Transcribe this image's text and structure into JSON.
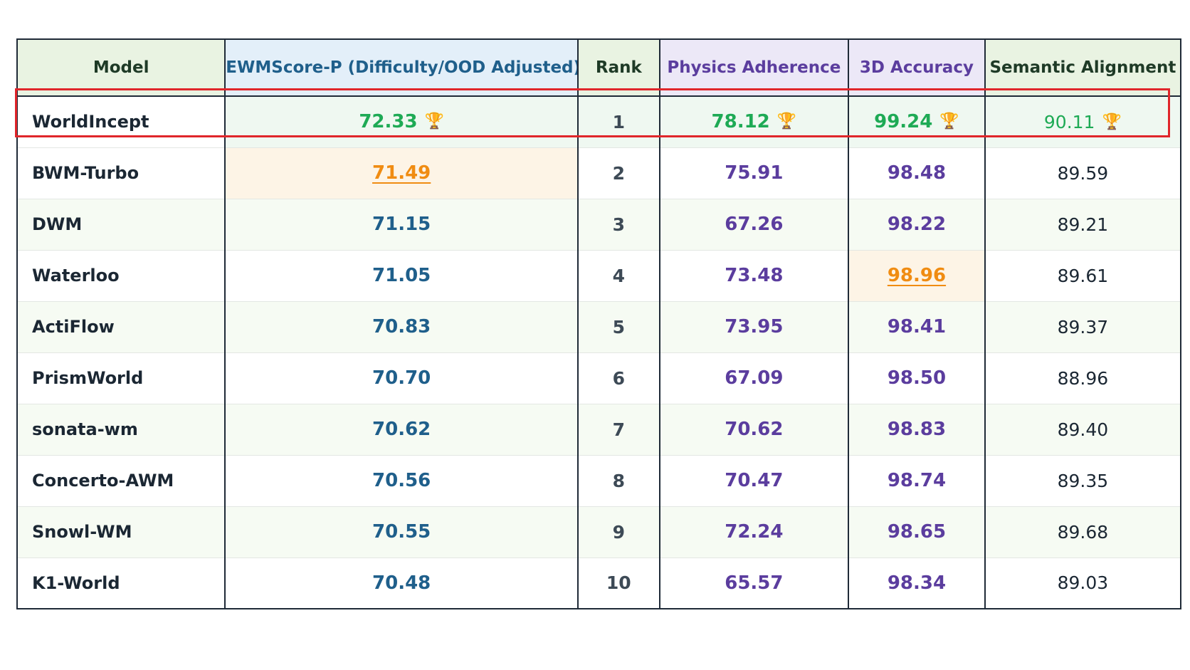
{
  "colors": {
    "best": "#1eaa55",
    "second_best": "#f08c12",
    "highlight_border": "#e0262b",
    "score": "#1f5f8b",
    "subscore": "#5b3d9e"
  },
  "chart_data": {
    "type": "table",
    "columns": [
      "Model",
      "EWMScore-P (Difficulty/OOD Adjusted)",
      "Rank",
      "Physics Adherence",
      "3D Accuracy",
      "Semantic Alignment"
    ],
    "rows": [
      {
        "model": "WorldIncept",
        "score": "72.33",
        "rank": "1",
        "physics": "78.12",
        "accuracy": "99.24",
        "semantic": "90.11"
      },
      {
        "model": "BWM-Turbo",
        "score": "71.49",
        "rank": "2",
        "physics": "75.91",
        "accuracy": "98.48",
        "semantic": "89.59"
      },
      {
        "model": "DWM",
        "score": "71.15",
        "rank": "3",
        "physics": "67.26",
        "accuracy": "98.22",
        "semantic": "89.21"
      },
      {
        "model": "Waterloo",
        "score": "71.05",
        "rank": "4",
        "physics": "73.48",
        "accuracy": "98.96",
        "semantic": "89.61"
      },
      {
        "model": "ActiFlow",
        "score": "70.83",
        "rank": "5",
        "physics": "73.95",
        "accuracy": "98.41",
        "semantic": "89.37"
      },
      {
        "model": "PrismWorld",
        "score": "70.70",
        "rank": "6",
        "physics": "67.09",
        "accuracy": "98.50",
        "semantic": "88.96"
      },
      {
        "model": "sonata-wm",
        "score": "70.62",
        "rank": "7",
        "physics": "70.62",
        "accuracy": "98.83",
        "semantic": "89.40"
      },
      {
        "model": "Concerto-AWM",
        "score": "70.56",
        "rank": "8",
        "physics": "70.47",
        "accuracy": "98.74",
        "semantic": "89.35"
      },
      {
        "model": "Snowl-WM",
        "score": "70.55",
        "rank": "9",
        "physics": "72.24",
        "accuracy": "98.65",
        "semantic": "89.68"
      },
      {
        "model": "K1-World",
        "score": "70.48",
        "rank": "10",
        "physics": "65.57",
        "accuracy": "98.34",
        "semantic": "89.03"
      }
    ],
    "best_marker_icon": "trophy-icon",
    "second_best_cells": [
      "BWM-Turbo.score",
      "Waterloo.accuracy"
    ]
  }
}
